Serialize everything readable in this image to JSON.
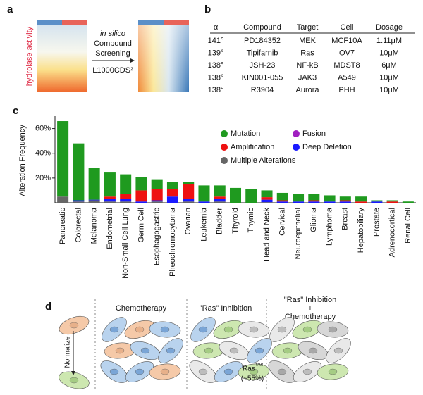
{
  "panel_a": {
    "label": "a",
    "axis_label": "hydrolase activity",
    "screen_lines": [
      "in silico",
      "Compound",
      "Screening",
      "L1000CDS²"
    ]
  },
  "panel_b": {
    "label": "b",
    "table": {
      "columns": [
        "α",
        "Compound",
        "Target",
        "Cell",
        "Dosage"
      ],
      "rows": [
        [
          "141°",
          "PD184352",
          "MEK",
          "MCF10A",
          "1.11μM"
        ],
        [
          "139°",
          "Tipifarnib",
          "Ras",
          "OV7",
          "10μM"
        ],
        [
          "138°",
          "JSH-23",
          "NF-kB",
          "MDST8",
          "6μM"
        ],
        [
          "138°",
          "KIN001-055",
          "JAK3",
          "A549",
          "10μM"
        ],
        [
          "138°",
          "R3904",
          "Aurora",
          "PHH",
          "10μM"
        ]
      ]
    }
  },
  "chart_data": {
    "type": "stacked_bar",
    "label": "c",
    "y_label": "Alteration Frequency",
    "categories": [
      "Pancreatic",
      "Colorectal",
      "Melanoma",
      "Endometrial",
      "Non-Small Cell Lung",
      "Germ Cell",
      "Esophagogastric",
      "Pheochromocytoma",
      "Ovarian",
      "Leukemia",
      "Bladder",
      "Thyroid",
      "Thymic",
      "Head and Neck",
      "Cervical",
      "Neuroepithelial",
      "Glioma",
      "Lymphoma",
      "Breast",
      "Hepatobiliary",
      "Prostate",
      "Adrenocortical",
      "Renal Cell"
    ],
    "series": [
      {
        "name": "Multiple Alterations",
        "color": "#666666",
        "values": [
          5,
          1,
          2,
          1,
          1,
          0,
          1,
          0,
          1,
          0,
          1,
          0,
          0,
          0.5,
          0,
          0,
          0,
          0,
          0,
          0,
          0,
          0,
          0
        ]
      },
      {
        "name": "Deep Deletion",
        "color": "#1a1aff",
        "values": [
          0,
          1,
          0.5,
          2,
          2,
          1,
          1,
          5,
          2,
          1,
          2,
          0,
          0,
          2,
          1,
          1,
          1,
          1,
          1,
          0,
          1,
          0,
          0
        ]
      },
      {
        "name": "Amplification",
        "color": "#ee1111",
        "values": [
          0,
          0,
          0,
          2,
          4,
          9,
          9,
          6,
          12,
          0,
          2,
          0,
          0,
          2,
          1,
          0,
          1,
          0,
          1,
          1,
          0,
          1,
          0
        ]
      },
      {
        "name": "Fusion",
        "color": "#a020c0",
        "values": [
          0,
          0,
          0,
          0,
          0,
          0,
          0,
          0,
          0,
          0,
          0,
          0,
          0,
          0,
          0,
          0,
          0,
          0,
          0,
          0,
          0,
          0,
          0
        ]
      },
      {
        "name": "Mutation",
        "color": "#1f9a1f",
        "values": [
          61,
          46,
          25.5,
          20,
          16,
          11,
          8,
          6,
          2,
          13,
          9,
          12,
          11,
          5.5,
          6,
          6,
          5,
          5,
          3,
          4,
          1,
          1,
          1
        ]
      }
    ],
    "ylim": [
      0,
      70
    ],
    "yticks": [
      {
        "value": 20,
        "label": "20%"
      },
      {
        "value": 40,
        "label": "40%"
      },
      {
        "value": 60,
        "label": "60%"
      }
    ]
  },
  "panel_d": {
    "label": "d",
    "normalize": "Normalize",
    "chemo": "Chemotherapy",
    "ras": "\"Ras\" Inhibition",
    "combo": [
      "\"Ras\" Inhibition",
      "+",
      "Chemotherapy"
    ],
    "ras_mut": "Ras",
    "ras_mut_sup": "Mut",
    "share": "(~55%)"
  }
}
